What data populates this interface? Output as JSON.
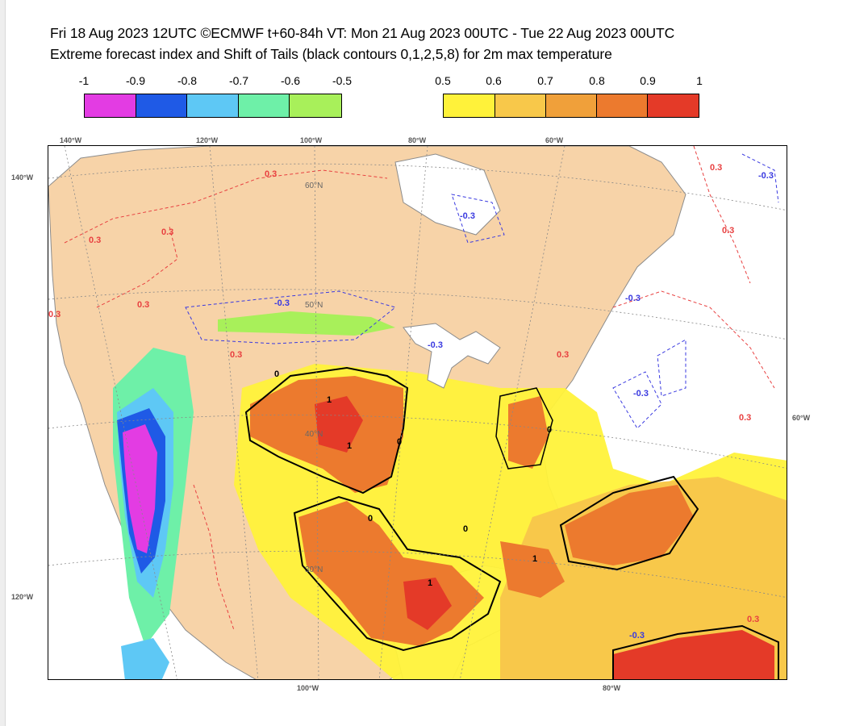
{
  "header": {
    "line1": "Fri 18 Aug 2023 12UTC ©ECMWF t+60-84h  VT: Mon 21 Aug 2023 00UTC - Tue 22 Aug 2023 00UTC",
    "line2": "Extreme forecast index and Shift of Tails (black contours 0,1,2,5,8) for 2m max temperature"
  },
  "legend_cold": {
    "ticks": [
      "-1",
      "-0.9",
      "-0.8",
      "-0.7",
      "-0.6",
      "-0.5"
    ],
    "colors": [
      "#e33ce3",
      "#1f5ae6",
      "#5ec8f5",
      "#6ef0a8",
      "#a8f05a"
    ]
  },
  "legend_warm": {
    "ticks": [
      "0.5",
      "0.6",
      "0.7",
      "0.8",
      "0.9",
      "1"
    ],
    "colors": [
      "#fff23a",
      "#f8c84a",
      "#f0a03a",
      "#ec7a2e",
      "#e43a28"
    ]
  },
  "map": {
    "lon_labels_top": [
      "140°W",
      "120°W",
      "100°W",
      "80°W",
      "60°W"
    ],
    "lon_labels_bottom": [
      "100°W",
      "80°W"
    ],
    "lat_labels_left": [
      "140°W",
      "120°W"
    ],
    "lat_labels_right": [
      "60°W"
    ],
    "lat_labels_inside": [
      "60°N",
      "50°N",
      "40°N",
      "30°N"
    ],
    "contour_labels_red": [
      "0.3",
      "0.3",
      "0.3",
      "0.3",
      "0.3",
      "0.3",
      "0.3",
      "0.3",
      "0.3",
      "0.3",
      "0.3"
    ],
    "contour_labels_blue": [
      "-0.3",
      "-0.3",
      "-0.3",
      "-0.3",
      "-0.3",
      "-0.3",
      "-0.3"
    ],
    "contour_labels_black": [
      "0",
      "1",
      "1",
      "0",
      "0",
      "1",
      "0",
      "1",
      "0"
    ],
    "colors": {
      "land_background": "#f7d3a8",
      "ocean": "#ffffff",
      "lakes": "#ffffff",
      "coastline": "#8c8c8c",
      "sot_contour": "#000000",
      "pos_contour": "#e84040",
      "neg_contour": "#3a3ae0"
    }
  }
}
